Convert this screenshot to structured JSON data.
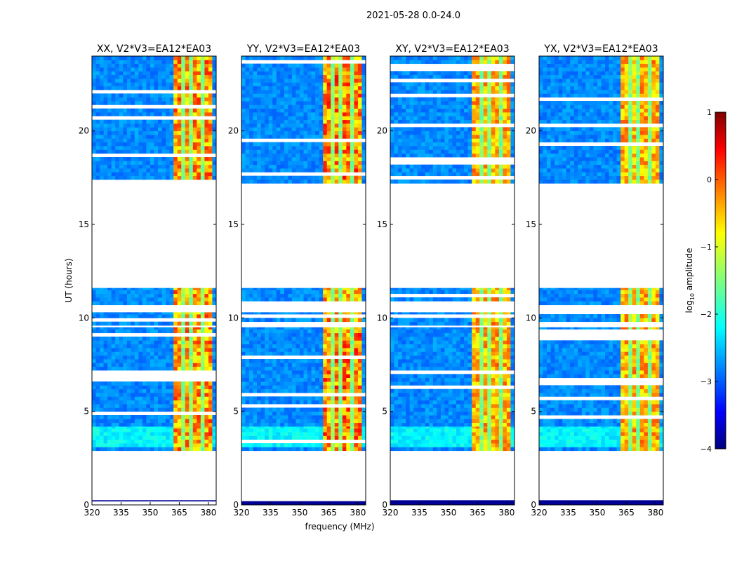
{
  "chart_data": {
    "type": "heatmap",
    "suptitle": "2021-05-28 0.0-24.0",
    "panels": [
      {
        "title": "XX, V2*V3=EA12*EA03",
        "strength": 1.0
      },
      {
        "title": "YY, V2*V3=EA12*EA03",
        "strength": 1.1
      },
      {
        "title": "XY, V2*V3=EA12*EA03",
        "strength": 0.8
      },
      {
        "title": "YX, V2*V3=EA12*EA03",
        "strength": 0.8
      }
    ],
    "xlabel": "frequency (MHz)",
    "ylabel": "UT (hours)",
    "xlim": [
      320,
      384
    ],
    "ylim": [
      0,
      24
    ],
    "xticks": [
      "320",
      "335",
      "350",
      "365",
      "380"
    ],
    "xtick_values": [
      320,
      335,
      350,
      365,
      380
    ],
    "yticks": [
      "0",
      "5",
      "10",
      "15",
      "20"
    ],
    "ytick_values": [
      0,
      5,
      10,
      15,
      20
    ],
    "data_segments_hours": [
      [
        0.0,
        0.25
      ],
      [
        2.9,
        4.2
      ],
      [
        4.2,
        9.5
      ],
      [
        9.6,
        10.3
      ],
      [
        10.7,
        11.6
      ],
      [
        17.2,
        24.0
      ]
    ],
    "rfi_band_mhz": [
      361,
      381
    ],
    "rfi_gaps_mhz": [
      366,
      371,
      376
    ],
    "colorbar": {
      "label": "log10 amplitude",
      "label_main": "log",
      "label_sub": "10",
      "label_rest": " amplitude",
      "range": [
        -4,
        1
      ],
      "ticks": [
        "1",
        "0",
        "−1",
        "−2",
        "−3",
        "−4"
      ],
      "tick_values": [
        1,
        0,
        -1,
        -2,
        -3,
        -4
      ],
      "colormap": "jet"
    }
  }
}
